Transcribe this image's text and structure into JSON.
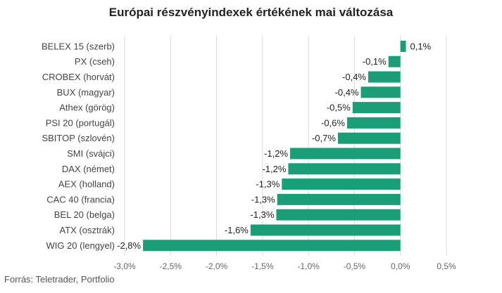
{
  "title": "Európai részvényindexek értékének mai változása",
  "source": "Forrás: Teletrader, Portfolio",
  "colors": {
    "bar": "#1a9e77",
    "grid": "#d9d9d9",
    "text": "#444444"
  },
  "chart_data": {
    "type": "bar",
    "orientation": "horizontal",
    "title": "Európai részvényindexek értékének mai változása",
    "categories": [
      "BELEX 15 (szerb)",
      "PX (cseh)",
      "CROBEX (horvát)",
      "BUX (magyar)",
      "Athex (görög)",
      "PSI 20 (portugál)",
      "SBITOP (szlovén)",
      "SMI (svájci)",
      "DAX (német)",
      "AEX (holland)",
      "CAC 40 (francia)",
      "BEL 20 (belga)",
      "ATX (osztrák)",
      "WIG 20 (lengyel)"
    ],
    "values": [
      0.06,
      -0.13,
      -0.35,
      -0.43,
      -0.52,
      -0.58,
      -0.68,
      -1.2,
      -1.22,
      -1.29,
      -1.34,
      -1.35,
      -1.63,
      -2.8
    ],
    "value_labels": [
      "0,1%",
      "-0,1%",
      "-0,4%",
      "-0,4%",
      "-0,5%",
      "-0,6%",
      "-0,7%",
      "-1,2%",
      "-1,2%",
      "-1,3%",
      "-1,3%",
      "-1,3%",
      "-1,6%",
      "-2,8%"
    ],
    "xlim": [
      -3.0,
      0.5
    ],
    "xticks": [
      -3.0,
      -2.5,
      -2.0,
      -1.5,
      -1.0,
      -0.5,
      0.0,
      0.5
    ],
    "xtick_labels": [
      "-3,0%",
      "-2,5%",
      "-2,0%",
      "-1,5%",
      "-1,0%",
      "-0,5%",
      "0,0%",
      "0,5%"
    ],
    "grid": true,
    "legend": "none"
  }
}
